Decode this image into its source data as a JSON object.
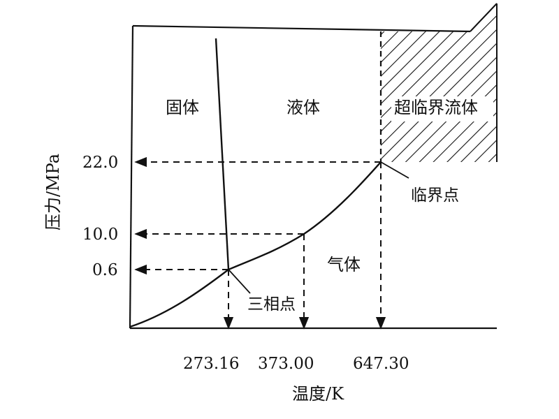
{
  "diagram": {
    "regions": {
      "solid": "固体",
      "liquid": "液体",
      "supercritical": "超临界流体",
      "gas": "气体"
    },
    "annotations": {
      "triple_point": "三相点",
      "critical_point": "临界点"
    },
    "axes": {
      "y_title": "压力/MPa",
      "x_title": "温度/K",
      "y_ticks": [
        "22.0",
        "10.0",
        "0.6"
      ],
      "x_ticks": [
        "273.16",
        "373.00",
        "647.30"
      ]
    },
    "hatch_region": "supercritical"
  }
}
